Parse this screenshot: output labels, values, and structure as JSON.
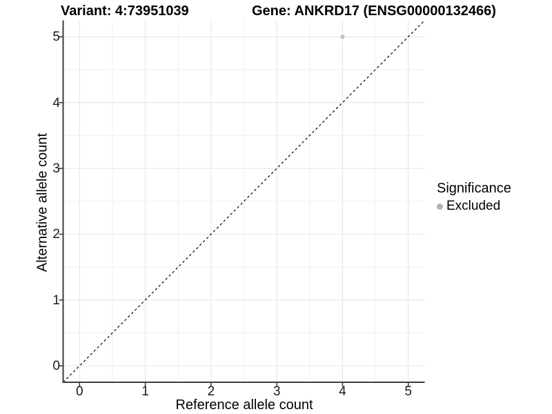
{
  "chart_data": {
    "type": "scatter",
    "title_variant": "Variant: 4:73951039",
    "title_gene": "Gene: ANKRD17 (ENSG00000132466)",
    "xlabel": "Reference allele count",
    "ylabel": "Alternative allele count",
    "x_ticks": [
      0,
      1,
      2,
      3,
      4,
      5
    ],
    "y_ticks": [
      0,
      1,
      2,
      3,
      4,
      5
    ],
    "xlim": [
      -0.25,
      5.25
    ],
    "ylim": [
      -0.25,
      5.25
    ],
    "grid": {
      "major": true,
      "minor": true,
      "major_color": "#e5e5e5",
      "minor_color": "#f0f0f0"
    },
    "axis_line_color": "#3c3c3c",
    "reference_line": {
      "type": "identity y=x",
      "style": "dashed",
      "color": "#000000"
    },
    "series": [
      {
        "name": "Excluded",
        "color": "#c3c3c3",
        "points": [
          {
            "x": 4,
            "y": 5
          }
        ]
      }
    ],
    "legend": {
      "title": "Significance",
      "position": "right",
      "entries": [
        {
          "label": "Excluded",
          "color": "#b3b3b3",
          "marker": "circle"
        }
      ]
    }
  }
}
